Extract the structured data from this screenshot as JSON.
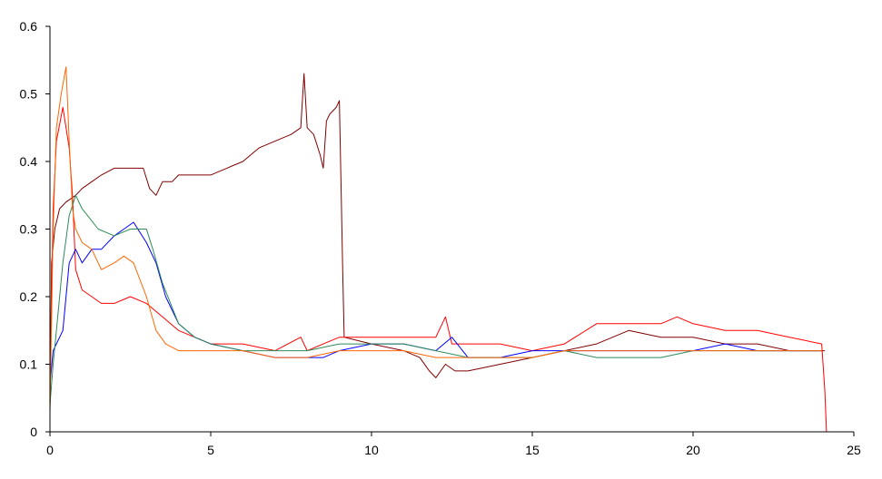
{
  "chart_data": {
    "type": "line",
    "title": "",
    "xlabel": "",
    "ylabel": "",
    "xlim": [
      0,
      25
    ],
    "ylim": [
      0,
      0.6
    ],
    "x_ticks": [
      0,
      5,
      10,
      15,
      20,
      25
    ],
    "x_tick_labels": [
      "0",
      "5",
      "10",
      "15",
      "20",
      "25"
    ],
    "y_ticks": [
      0,
      0.1,
      0.2,
      0.3,
      0.4,
      0.5,
      0.6
    ],
    "y_tick_labels": [
      "0",
      "0.1",
      "0.2",
      "0.3",
      "0.4",
      "0.5",
      "0.6"
    ],
    "grid": false,
    "legend": "none",
    "series": [
      {
        "color": "#800000",
        "x": [
          0,
          0.05,
          0.15,
          0.3,
          0.5,
          0.8,
          1.0,
          1.3,
          1.6,
          2.0,
          2.3,
          2.6,
          2.9,
          3.1,
          3.3,
          3.5,
          3.8,
          4.0,
          4.3,
          4.6,
          5.0,
          5.5,
          6.0,
          6.5,
          7.0,
          7.5,
          7.8,
          7.9,
          8.0,
          8.2,
          8.4,
          8.5,
          8.6,
          8.7,
          8.9,
          9.0,
          9.05,
          9.1,
          9.15
        ],
        "y": [
          0.03,
          0.25,
          0.3,
          0.33,
          0.34,
          0.35,
          0.36,
          0.37,
          0.38,
          0.39,
          0.39,
          0.39,
          0.39,
          0.36,
          0.35,
          0.37,
          0.37,
          0.38,
          0.38,
          0.38,
          0.38,
          0.39,
          0.4,
          0.42,
          0.43,
          0.44,
          0.45,
          0.53,
          0.45,
          0.44,
          0.41,
          0.39,
          0.46,
          0.47,
          0.48,
          0.49,
          0.37,
          0.25,
          0.14
        ]
      },
      {
        "color": "#800000",
        "x": [
          9.15,
          10.0,
          11.0,
          11.5,
          11.8,
          12.0,
          12.3,
          12.6,
          13.0,
          14.0,
          15.0,
          16.0,
          17.0,
          18.0,
          19.0,
          20.0,
          21.0,
          22.0,
          23.0,
          24.0,
          24.1
        ],
        "y": [
          0.14,
          0.13,
          0.12,
          0.11,
          0.09,
          0.08,
          0.1,
          0.09,
          0.09,
          0.1,
          0.11,
          0.12,
          0.13,
          0.15,
          0.14,
          0.14,
          0.13,
          0.13,
          0.12,
          0.12,
          0.12
        ]
      },
      {
        "color": "#FF0000",
        "x": [
          0,
          0.1,
          0.2,
          0.4,
          0.6,
          0.7,
          0.8,
          1.0,
          1.3,
          1.6,
          2.0,
          2.5,
          3.0,
          3.5,
          4.0,
          4.5,
          5.0,
          6.0,
          7.0,
          7.8,
          8.0,
          8.5,
          9.0,
          10.0,
          11.0,
          12.0,
          12.3,
          12.5,
          13.0,
          14.0,
          15.0,
          16.0,
          17.0,
          18.0,
          19.0,
          19.5,
          20.0,
          21.0,
          22.0,
          23.0,
          24.0,
          24.1,
          24.15
        ],
        "y": [
          0.07,
          0.33,
          0.43,
          0.48,
          0.42,
          0.35,
          0.24,
          0.21,
          0.2,
          0.19,
          0.19,
          0.2,
          0.19,
          0.17,
          0.15,
          0.14,
          0.13,
          0.13,
          0.12,
          0.14,
          0.12,
          0.13,
          0.14,
          0.14,
          0.14,
          0.14,
          0.17,
          0.13,
          0.13,
          0.13,
          0.12,
          0.13,
          0.16,
          0.16,
          0.16,
          0.17,
          0.16,
          0.15,
          0.15,
          0.14,
          0.13,
          0.06,
          0.0
        ]
      },
      {
        "color": "#0000FF",
        "x": [
          0,
          0.1,
          0.2,
          0.4,
          0.6,
          0.8,
          1.0,
          1.3,
          1.6,
          2.0,
          2.3,
          2.6,
          3.0,
          3.3,
          3.6,
          4.0,
          4.5,
          5.0,
          6.0,
          7.0,
          8.0,
          8.5,
          9.0,
          10.0,
          11.0,
          12.0,
          12.5,
          13.0,
          14.0,
          15.0,
          16.0,
          17.0,
          18.0,
          19.0,
          20.0,
          21.0,
          22.0,
          23.0,
          24.0
        ],
        "y": [
          0.07,
          0.12,
          0.13,
          0.15,
          0.25,
          0.27,
          0.25,
          0.27,
          0.27,
          0.29,
          0.3,
          0.31,
          0.28,
          0.25,
          0.2,
          0.16,
          0.14,
          0.13,
          0.12,
          0.11,
          0.11,
          0.11,
          0.12,
          0.13,
          0.13,
          0.12,
          0.14,
          0.11,
          0.11,
          0.12,
          0.12,
          0.12,
          0.12,
          0.12,
          0.12,
          0.13,
          0.12,
          0.12,
          0.12
        ]
      },
      {
        "color": "#2E8B57",
        "x": [
          0,
          0.1,
          0.2,
          0.4,
          0.6,
          0.8,
          1.0,
          1.5,
          2.0,
          2.5,
          3.0,
          3.2,
          3.5,
          4.0,
          4.5,
          5.0,
          6.0,
          7.0,
          8.0,
          9.0,
          10.0,
          11.0,
          12.0,
          13.0,
          14.0,
          15.0,
          16.0,
          17.0,
          18.0,
          19.0,
          20.0,
          21.0,
          22.0,
          23.0,
          24.0
        ],
        "y": [
          0.04,
          0.1,
          0.15,
          0.25,
          0.32,
          0.35,
          0.33,
          0.3,
          0.29,
          0.3,
          0.3,
          0.27,
          0.22,
          0.16,
          0.14,
          0.13,
          0.12,
          0.12,
          0.12,
          0.13,
          0.13,
          0.13,
          0.12,
          0.11,
          0.11,
          0.11,
          0.12,
          0.11,
          0.11,
          0.11,
          0.12,
          0.12,
          0.12,
          0.12,
          0.12
        ]
      },
      {
        "color": "#FF6600",
        "x": [
          0,
          0.1,
          0.2,
          0.35,
          0.5,
          0.6,
          0.7,
          0.8,
          1.0,
          1.3,
          1.6,
          2.0,
          2.3,
          2.6,
          3.0,
          3.3,
          3.6,
          4.0,
          4.5,
          5.0,
          6.0,
          7.0,
          8.0,
          9.0,
          10.0,
          11.0,
          12.0,
          13.0,
          14.0,
          15.0,
          16.0,
          17.0,
          18.0,
          19.0,
          20.0,
          21.0,
          22.0,
          23.0,
          24.0
        ],
        "y": [
          0.03,
          0.3,
          0.45,
          0.5,
          0.54,
          0.43,
          0.33,
          0.3,
          0.28,
          0.27,
          0.24,
          0.25,
          0.26,
          0.25,
          0.2,
          0.15,
          0.13,
          0.12,
          0.12,
          0.12,
          0.12,
          0.11,
          0.11,
          0.12,
          0.12,
          0.12,
          0.11,
          0.11,
          0.11,
          0.11,
          0.12,
          0.12,
          0.12,
          0.12,
          0.12,
          0.12,
          0.12,
          0.12,
          0.12
        ]
      }
    ]
  }
}
